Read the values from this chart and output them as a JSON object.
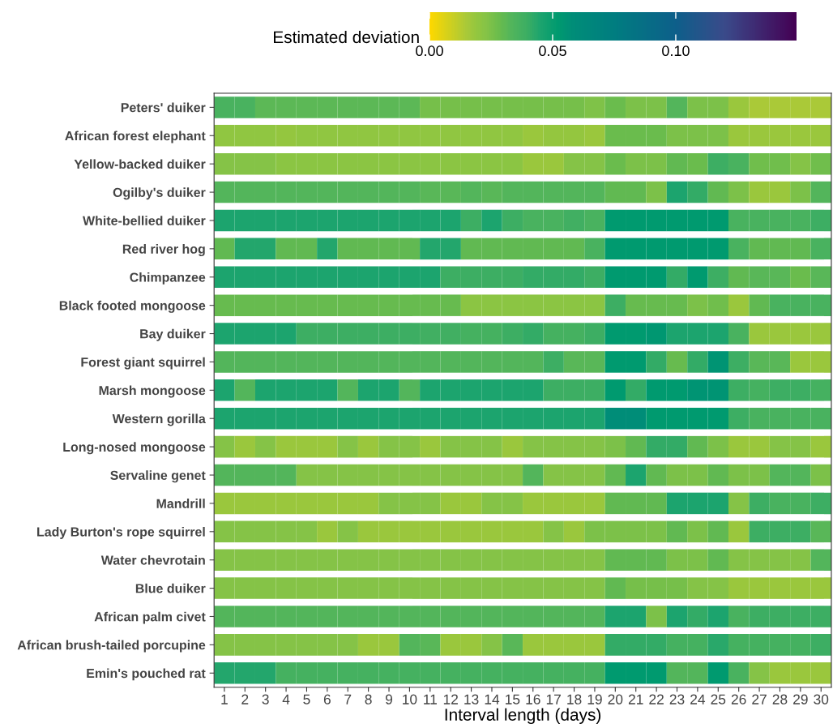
{
  "chart_data": {
    "type": "heatmap",
    "xlabel": "Interval length (days)",
    "clabel": "Estimated deviation",
    "categories": [
      "1",
      "2",
      "3",
      "4",
      "5",
      "6",
      "7",
      "8",
      "9",
      "10",
      "11",
      "12",
      "13",
      "14",
      "15",
      "16",
      "17",
      "18",
      "19",
      "20",
      "21",
      "22",
      "23",
      "24",
      "25",
      "26",
      "27",
      "28",
      "29",
      "30"
    ],
    "y_categories": [
      "Peters' duiker",
      "African forest elephant",
      "Yellow-backed duiker",
      "Ogilby's duiker",
      "White-bellied duiker",
      "Red river hog",
      "Chimpanzee",
      "Black footed mongoose",
      "Bay duiker",
      "Forest giant squirrel",
      "Marsh mongoose",
      "Western gorilla",
      "Long-nosed mongoose",
      "Servaline genet",
      "Mandrill",
      "Lady Burton's rope squirrel",
      "Water chevrotain",
      "Blue duiker",
      "African palm civet",
      "African brush-tailed porcupine",
      "Emin's pouched rat"
    ],
    "cells": [
      [
        0.036,
        0.036,
        0.031,
        0.031,
        0.031,
        0.031,
        0.031,
        0.031,
        0.031,
        0.031,
        0.026,
        0.026,
        0.026,
        0.026,
        0.026,
        0.026,
        0.026,
        0.026,
        0.024,
        0.028,
        0.025,
        0.025,
        0.033,
        0.025,
        0.025,
        0.018,
        0.015,
        0.015,
        0.015,
        0.015
      ],
      [
        0.02,
        0.02,
        0.02,
        0.019,
        0.02,
        0.02,
        0.02,
        0.02,
        0.02,
        0.02,
        0.02,
        0.02,
        0.02,
        0.02,
        0.02,
        0.018,
        0.019,
        0.019,
        0.018,
        0.028,
        0.028,
        0.028,
        0.025,
        0.025,
        0.025,
        0.018,
        0.018,
        0.018,
        0.018,
        0.018
      ],
      [
        0.023,
        0.023,
        0.023,
        0.021,
        0.021,
        0.021,
        0.021,
        0.021,
        0.021,
        0.021,
        0.021,
        0.021,
        0.021,
        0.021,
        0.021,
        0.018,
        0.018,
        0.023,
        0.023,
        0.028,
        0.025,
        0.025,
        0.03,
        0.028,
        0.039,
        0.036,
        0.027,
        0.027,
        0.023,
        0.027
      ],
      [
        0.033,
        0.033,
        0.033,
        0.033,
        0.033,
        0.033,
        0.033,
        0.033,
        0.033,
        0.033,
        0.032,
        0.032,
        0.033,
        0.032,
        0.033,
        0.033,
        0.033,
        0.033,
        0.033,
        0.03,
        0.03,
        0.025,
        0.045,
        0.041,
        0.03,
        0.025,
        0.018,
        0.018,
        0.025,
        0.033
      ],
      [
        0.045,
        0.045,
        0.045,
        0.045,
        0.045,
        0.045,
        0.045,
        0.045,
        0.045,
        0.045,
        0.045,
        0.045,
        0.039,
        0.045,
        0.039,
        0.036,
        0.036,
        0.038,
        0.036,
        0.052,
        0.052,
        0.052,
        0.052,
        0.052,
        0.052,
        0.036,
        0.036,
        0.036,
        0.036,
        0.039
      ],
      [
        0.03,
        0.044,
        0.044,
        0.03,
        0.03,
        0.044,
        0.03,
        0.03,
        0.03,
        0.03,
        0.044,
        0.044,
        0.03,
        0.03,
        0.03,
        0.03,
        0.03,
        0.03,
        0.036,
        0.052,
        0.052,
        0.052,
        0.052,
        0.052,
        0.052,
        0.036,
        0.03,
        0.03,
        0.03,
        0.036
      ],
      [
        0.045,
        0.045,
        0.045,
        0.045,
        0.045,
        0.045,
        0.045,
        0.045,
        0.045,
        0.045,
        0.045,
        0.039,
        0.039,
        0.039,
        0.039,
        0.041,
        0.041,
        0.041,
        0.039,
        0.052,
        0.052,
        0.052,
        0.041,
        0.052,
        0.039,
        0.03,
        0.032,
        0.032,
        0.028,
        0.032
      ],
      [
        0.029,
        0.029,
        0.029,
        0.029,
        0.029,
        0.029,
        0.029,
        0.029,
        0.029,
        0.029,
        0.029,
        0.029,
        0.021,
        0.021,
        0.021,
        0.021,
        0.021,
        0.021,
        0.021,
        0.039,
        0.029,
        0.029,
        0.029,
        0.025,
        0.027,
        0.018,
        0.03,
        0.036,
        0.036,
        0.036
      ],
      [
        0.045,
        0.045,
        0.045,
        0.045,
        0.039,
        0.039,
        0.039,
        0.039,
        0.039,
        0.039,
        0.038,
        0.038,
        0.037,
        0.037,
        0.039,
        0.041,
        0.037,
        0.037,
        0.039,
        0.052,
        0.052,
        0.053,
        0.045,
        0.045,
        0.045,
        0.036,
        0.018,
        0.018,
        0.018,
        0.018
      ],
      [
        0.033,
        0.033,
        0.033,
        0.033,
        0.033,
        0.033,
        0.033,
        0.033,
        0.033,
        0.033,
        0.033,
        0.033,
        0.033,
        0.033,
        0.033,
        0.033,
        0.039,
        0.032,
        0.032,
        0.052,
        0.052,
        0.041,
        0.029,
        0.041,
        0.055,
        0.039,
        0.032,
        0.032,
        0.018,
        0.018
      ],
      [
        0.045,
        0.033,
        0.045,
        0.045,
        0.045,
        0.045,
        0.033,
        0.045,
        0.045,
        0.033,
        0.045,
        0.045,
        0.045,
        0.045,
        0.045,
        0.045,
        0.039,
        0.039,
        0.039,
        0.052,
        0.041,
        0.052,
        0.052,
        0.055,
        0.055,
        0.039,
        0.037,
        0.039,
        0.039,
        0.037
      ],
      [
        0.045,
        0.045,
        0.045,
        0.045,
        0.045,
        0.045,
        0.045,
        0.045,
        0.045,
        0.045,
        0.045,
        0.045,
        0.045,
        0.045,
        0.045,
        0.045,
        0.045,
        0.045,
        0.045,
        0.058,
        0.058,
        0.052,
        0.052,
        0.052,
        0.052,
        0.039,
        0.036,
        0.036,
        0.036,
        0.036
      ],
      [
        0.023,
        0.018,
        0.023,
        0.018,
        0.018,
        0.018,
        0.023,
        0.018,
        0.023,
        0.023,
        0.018,
        0.023,
        0.023,
        0.023,
        0.018,
        0.023,
        0.023,
        0.023,
        0.023,
        0.025,
        0.03,
        0.041,
        0.041,
        0.03,
        0.025,
        0.018,
        0.018,
        0.023,
        0.023,
        0.018
      ],
      [
        0.033,
        0.033,
        0.033,
        0.033,
        0.023,
        0.023,
        0.023,
        0.023,
        0.023,
        0.023,
        0.023,
        0.023,
        0.023,
        0.023,
        0.023,
        0.033,
        0.023,
        0.023,
        0.023,
        0.03,
        0.045,
        0.03,
        0.025,
        0.025,
        0.03,
        0.025,
        0.025,
        0.033,
        0.033,
        0.025
      ],
      [
        0.018,
        0.018,
        0.018,
        0.018,
        0.018,
        0.018,
        0.018,
        0.018,
        0.023,
        0.023,
        0.023,
        0.018,
        0.018,
        0.023,
        0.023,
        0.018,
        0.018,
        0.018,
        0.018,
        0.03,
        0.03,
        0.03,
        0.045,
        0.045,
        0.045,
        0.023,
        0.039,
        0.036,
        0.036,
        0.039
      ],
      [
        0.023,
        0.023,
        0.023,
        0.023,
        0.023,
        0.018,
        0.023,
        0.018,
        0.018,
        0.018,
        0.018,
        0.018,
        0.018,
        0.018,
        0.018,
        0.018,
        0.023,
        0.018,
        0.025,
        0.025,
        0.025,
        0.025,
        0.03,
        0.025,
        0.03,
        0.018,
        0.039,
        0.039,
        0.039,
        0.032
      ],
      [
        0.023,
        0.023,
        0.023,
        0.023,
        0.023,
        0.023,
        0.023,
        0.023,
        0.023,
        0.023,
        0.023,
        0.023,
        0.023,
        0.023,
        0.023,
        0.023,
        0.023,
        0.023,
        0.023,
        0.03,
        0.03,
        0.03,
        0.025,
        0.025,
        0.03,
        0.023,
        0.023,
        0.023,
        0.023,
        0.033
      ],
      [
        0.023,
        0.023,
        0.023,
        0.023,
        0.023,
        0.023,
        0.023,
        0.023,
        0.023,
        0.023,
        0.023,
        0.023,
        0.023,
        0.023,
        0.023,
        0.023,
        0.023,
        0.023,
        0.023,
        0.03,
        0.026,
        0.026,
        0.026,
        0.023,
        0.023,
        0.018,
        0.018,
        0.018,
        0.018,
        0.018
      ],
      [
        0.033,
        0.033,
        0.033,
        0.033,
        0.033,
        0.033,
        0.033,
        0.033,
        0.033,
        0.033,
        0.033,
        0.033,
        0.033,
        0.033,
        0.033,
        0.033,
        0.033,
        0.033,
        0.033,
        0.045,
        0.045,
        0.025,
        0.045,
        0.041,
        0.045,
        0.036,
        0.039,
        0.039,
        0.039,
        0.039
      ],
      [
        0.023,
        0.023,
        0.023,
        0.023,
        0.023,
        0.023,
        0.023,
        0.018,
        0.018,
        0.033,
        0.032,
        0.018,
        0.018,
        0.023,
        0.032,
        0.018,
        0.018,
        0.018,
        0.018,
        0.041,
        0.041,
        0.041,
        0.037,
        0.037,
        0.043,
        0.037,
        0.037,
        0.037,
        0.037,
        0.039
      ],
      [
        0.044,
        0.044,
        0.044,
        0.037,
        0.037,
        0.037,
        0.037,
        0.037,
        0.037,
        0.037,
        0.037,
        0.037,
        0.037,
        0.037,
        0.037,
        0.037,
        0.037,
        0.037,
        0.037,
        0.052,
        0.052,
        0.052,
        0.033,
        0.033,
        0.052,
        0.036,
        0.023,
        0.018,
        0.018,
        0.018
      ]
    ],
    "clim": [
      0,
      0.149
    ],
    "cticks": [
      {
        "value": 0,
        "label": "0.00"
      },
      {
        "value": 0.05,
        "label": "0.05"
      },
      {
        "value": 0.1,
        "label": "0.10"
      }
    ]
  }
}
